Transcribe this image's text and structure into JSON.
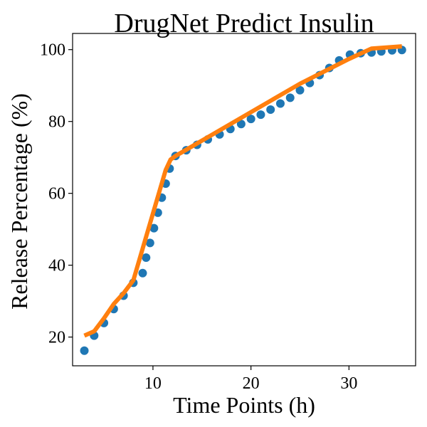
{
  "chart_data": {
    "type": "scatter",
    "title": "DrugNet Predict Insulin",
    "xlabel": "Time Points (h)",
    "ylabel": "Release Percentage (%)",
    "xlim": [
      1.8,
      36.8
    ],
    "ylim": [
      12,
      104.5
    ],
    "x_ticks": [
      10,
      20,
      30
    ],
    "x_tick_labels": [
      "10",
      "20",
      "30"
    ],
    "y_ticks": [
      20,
      40,
      60,
      80,
      100
    ],
    "y_tick_labels": [
      "20",
      "40",
      "60",
      "80",
      "100"
    ],
    "grid": false,
    "legend": "none",
    "series": [
      {
        "kind": "scatter",
        "color": "#1f77b4",
        "points": [
          [
            3.0,
            16.2
          ],
          [
            4.0,
            20.4
          ],
          [
            5.0,
            23.9
          ],
          [
            6.0,
            27.8
          ],
          [
            7.0,
            31.5
          ],
          [
            8.0,
            35.1
          ],
          [
            8.95,
            37.8
          ],
          [
            9.3,
            42.1
          ],
          [
            9.7,
            46.2
          ],
          [
            10.1,
            50.3
          ],
          [
            10.5,
            54.6
          ],
          [
            10.9,
            58.8
          ],
          [
            11.3,
            62.7
          ],
          [
            11.7,
            66.9
          ],
          [
            12.3,
            70.4
          ],
          [
            13.4,
            72.0
          ],
          [
            14.5,
            73.5
          ],
          [
            15.6,
            75.0
          ],
          [
            16.8,
            76.4
          ],
          [
            17.9,
            77.9
          ],
          [
            19.0,
            79.3
          ],
          [
            20.0,
            80.7
          ],
          [
            21.0,
            81.9
          ],
          [
            22.0,
            83.3
          ],
          [
            23.0,
            85.0
          ],
          [
            24.0,
            86.6
          ],
          [
            25.0,
            88.7
          ],
          [
            26.0,
            90.7
          ],
          [
            27.0,
            92.9
          ],
          [
            28.0,
            94.9
          ],
          [
            29.0,
            97.0
          ],
          [
            30.1,
            98.6
          ],
          [
            31.2,
            99.0
          ],
          [
            32.3,
            99.2
          ],
          [
            33.3,
            99.5
          ],
          [
            34.4,
            99.8
          ],
          [
            35.4,
            99.9
          ]
        ]
      },
      {
        "kind": "line",
        "color": "#ff7f0e",
        "points": [
          [
            3.0,
            20.4
          ],
          [
            4.0,
            21.6
          ],
          [
            5.0,
            25.2
          ],
          [
            6.0,
            29.2
          ],
          [
            7.0,
            32.2
          ],
          [
            8.0,
            35.8
          ],
          [
            11.3,
            66.5
          ],
          [
            11.8,
            69.4
          ],
          [
            12.3,
            70.4
          ],
          [
            20.0,
            82.6
          ],
          [
            25.0,
            90.5
          ],
          [
            30.0,
            97.4
          ],
          [
            32.3,
            100.3
          ],
          [
            35.4,
            100.9
          ]
        ]
      }
    ]
  }
}
